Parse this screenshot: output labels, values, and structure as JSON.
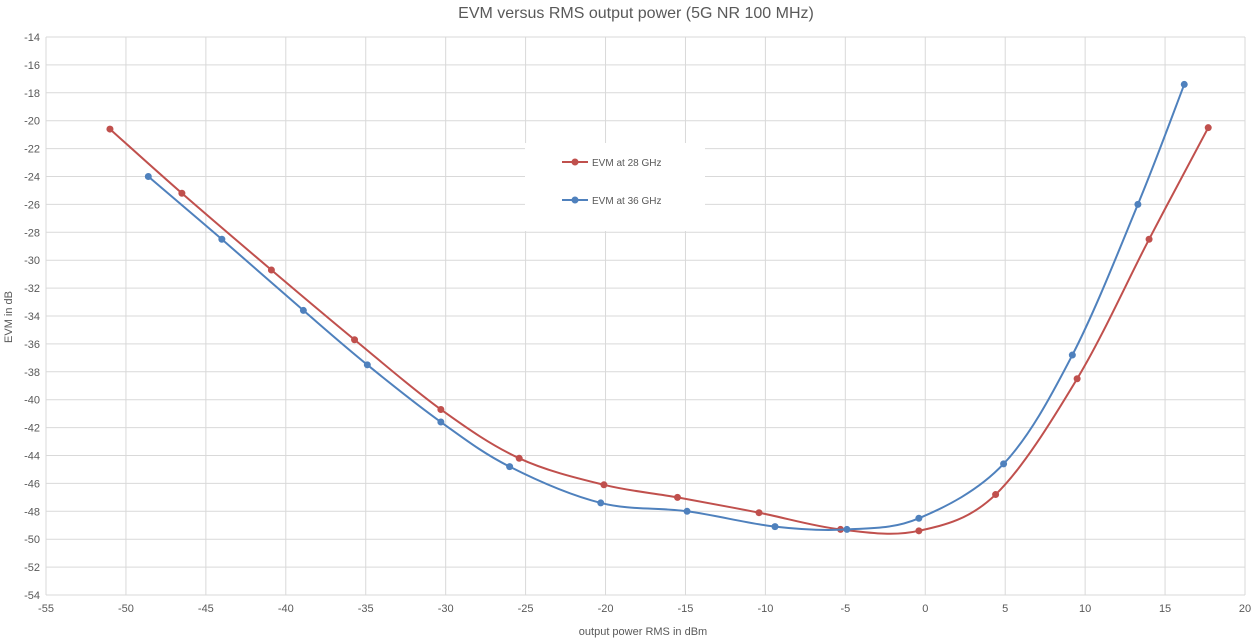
{
  "chart_data": {
    "type": "line",
    "title": "EVM versus RMS output power  (5G NR 100 MHz)",
    "xlabel": "output power RMS in dBm",
    "ylabel": "EVM in dB",
    "xlim": [
      -55,
      20
    ],
    "ylim": [
      -54,
      -14
    ],
    "xticks": [
      -55,
      -50,
      -45,
      -40,
      -35,
      -30,
      -25,
      -20,
      -15,
      -10,
      -5,
      0,
      5,
      10,
      15,
      20
    ],
    "yticks": [
      -54,
      -52,
      -50,
      -48,
      -46,
      -44,
      -42,
      -40,
      -38,
      -36,
      -34,
      -32,
      -30,
      -28,
      -26,
      -24,
      -22,
      -20,
      -18,
      -16,
      -14
    ],
    "grid": true,
    "legend_position": "upper-center",
    "series": [
      {
        "name": "EVM at 28 GHz",
        "color": "#c0504d",
        "x": [
          -51.0,
          -46.5,
          -40.9,
          -35.7,
          -30.3,
          -25.4,
          -20.1,
          -15.5,
          -10.4,
          -5.3,
          -0.4,
          4.4,
          9.5,
          14.0,
          17.7
        ],
        "y": [
          -20.6,
          -25.2,
          -30.7,
          -35.7,
          -40.7,
          -44.2,
          -46.1,
          -47.0,
          -48.1,
          -49.3,
          -49.4,
          -46.8,
          -38.5,
          -28.5,
          -20.5
        ]
      },
      {
        "name": "EVM at 36 GHz",
        "color": "#4f81bd",
        "x": [
          -48.6,
          -44.0,
          -38.9,
          -34.9,
          -30.3,
          -26.0,
          -20.3,
          -14.9,
          -9.4,
          -4.9,
          -0.4,
          4.9,
          9.2,
          13.3,
          16.2
        ],
        "y": [
          -24.0,
          -28.5,
          -33.6,
          -37.5,
          -41.6,
          -44.8,
          -47.4,
          -48.0,
          -49.1,
          -49.3,
          -48.5,
          -44.6,
          -36.8,
          -26.0,
          -17.4
        ]
      }
    ]
  }
}
